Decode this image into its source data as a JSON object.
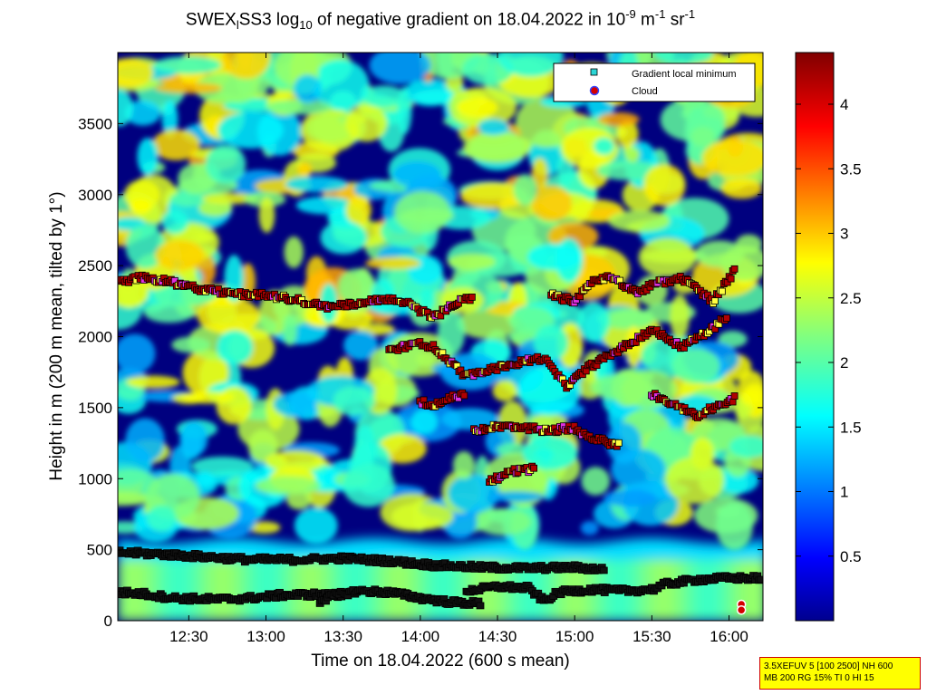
{
  "title": {
    "prefix": "SWEX",
    "sub1": "l",
    "mid": "SS3 log",
    "sub2": "10",
    "rest": " of negative gradient on 18.04.2022 in 10",
    "sup1": "-9",
    "unit1": " m",
    "sup2": "-1",
    "unit2": " sr",
    "sup3": "-1"
  },
  "info_box": {
    "line1": "3.5XEFUV 5 [100 2500] NH 600",
    "line2": "MB 200 RG 15% TI 0 HI 15"
  },
  "chart_data": {
    "type": "heatmap",
    "xlabel": "Time on 18.04.2022 (600 s mean)",
    "ylabel": "Height in m (200 m mean, tilted by 1°)",
    "x_ticks": [
      "12:30",
      "13:00",
      "13:30",
      "14:00",
      "14:30",
      "15:00",
      "15:30",
      "16:00"
    ],
    "x_tick_hours": [
      12.5,
      13.0,
      13.5,
      14.0,
      14.5,
      15.0,
      15.5,
      16.0
    ],
    "xlim_hours": [
      12.04,
      16.22
    ],
    "y_ticks": [
      0,
      500,
      1000,
      1500,
      2000,
      2500,
      3000,
      3500
    ],
    "ylim": [
      0,
      4000
    ],
    "colorbar": {
      "ticks": [
        "0.5",
        "1",
        "1.5",
        "2",
        "2.5",
        "3",
        "3.5",
        "4"
      ],
      "tick_values": [
        0.5,
        1,
        1.5,
        2,
        2.5,
        3,
        3.5,
        4
      ],
      "range": [
        0,
        4.4
      ],
      "colormap": "jet"
    },
    "legend": {
      "position": "top-right",
      "entries": [
        {
          "label": "Gradient local minimum",
          "marker": "square",
          "color": "#2bd6d6"
        },
        {
          "label": "Cloud",
          "marker": "circle",
          "color": "#d40000",
          "edge": "#3344ff"
        }
      ]
    },
    "layers": [
      {
        "name": "boundary-layer-top",
        "points": [
          [
            12.04,
            480
          ],
          [
            12.3,
            470
          ],
          [
            12.6,
            450
          ],
          [
            12.9,
            430
          ],
          [
            13.2,
            430
          ],
          [
            13.5,
            440
          ],
          [
            13.8,
            420
          ],
          [
            14.1,
            390
          ],
          [
            14.4,
            375
          ],
          [
            14.7,
            370
          ],
          [
            15.0,
            375
          ],
          [
            15.2,
            360
          ]
        ]
      },
      {
        "name": "lower-layer",
        "points": [
          [
            12.04,
            200
          ],
          [
            12.2,
            190
          ],
          [
            12.4,
            160
          ],
          [
            12.7,
            150
          ],
          [
            12.9,
            160
          ],
          [
            13.1,
            180
          ],
          [
            13.3,
            185
          ],
          [
            13.5,
            175
          ]
        ]
      },
      {
        "name": "lower-layer-b",
        "points": [
          [
            13.35,
            140
          ],
          [
            13.45,
            180
          ],
          [
            13.6,
            210
          ],
          [
            13.8,
            200
          ],
          [
            14.0,
            160
          ],
          [
            14.2,
            130
          ],
          [
            14.4,
            120
          ]
        ]
      },
      {
        "name": "lower-layer-c",
        "points": [
          [
            14.3,
            210
          ],
          [
            14.5,
            240
          ],
          [
            14.7,
            230
          ],
          [
            14.8,
            140
          ],
          [
            14.9,
            200
          ],
          [
            15.1,
            220
          ],
          [
            15.3,
            210
          ],
          [
            15.5,
            220
          ],
          [
            15.6,
            260
          ],
          [
            15.8,
            290
          ],
          [
            16.0,
            300
          ],
          [
            16.22,
            300
          ]
        ]
      },
      {
        "name": "cloud-layer-2300",
        "points": [
          [
            12.04,
            2380
          ],
          [
            12.2,
            2420
          ],
          [
            12.4,
            2380
          ],
          [
            12.6,
            2330
          ],
          [
            12.8,
            2300
          ],
          [
            13.0,
            2290
          ],
          [
            13.2,
            2260
          ],
          [
            13.4,
            2210
          ],
          [
            13.6,
            2230
          ],
          [
            13.8,
            2270
          ],
          [
            13.9,
            2250
          ],
          [
            14.0,
            2180
          ],
          [
            14.1,
            2140
          ],
          [
            14.25,
            2250
          ],
          [
            14.35,
            2280
          ]
        ]
      },
      {
        "name": "cloud-layer-1900",
        "points": [
          [
            13.8,
            1900
          ],
          [
            14.0,
            1960
          ],
          [
            14.1,
            1920
          ],
          [
            14.3,
            1720
          ],
          [
            14.5,
            1780
          ],
          [
            14.7,
            1830
          ],
          [
            14.8,
            1850
          ],
          [
            14.95,
            1650
          ],
          [
            15.1,
            1790
          ],
          [
            15.25,
            1880
          ],
          [
            15.4,
            1980
          ],
          [
            15.5,
            2050
          ],
          [
            15.7,
            1930
          ],
          [
            15.9,
            2060
          ],
          [
            16.0,
            2160
          ]
        ]
      },
      {
        "name": "cloud-layer-1550",
        "points": [
          [
            14.0,
            1540
          ],
          [
            14.1,
            1520
          ],
          [
            14.2,
            1570
          ],
          [
            14.3,
            1600
          ]
        ]
      },
      {
        "name": "cloud-layer-2250b",
        "points": [
          [
            14.85,
            2290
          ],
          [
            15.0,
            2250
          ],
          [
            15.1,
            2380
          ],
          [
            15.25,
            2420
          ],
          [
            15.4,
            2310
          ],
          [
            15.55,
            2380
          ],
          [
            15.7,
            2410
          ],
          [
            15.9,
            2250
          ],
          [
            16.05,
            2480
          ]
        ]
      },
      {
        "name": "cloud-layer-1300",
        "points": [
          [
            14.35,
            1340
          ],
          [
            14.5,
            1370
          ],
          [
            14.85,
            1340
          ],
          [
            15.0,
            1360
          ],
          [
            15.1,
            1290
          ],
          [
            15.3,
            1230
          ]
        ]
      },
      {
        "name": "cloud-layer-1050",
        "points": [
          [
            14.45,
            980
          ],
          [
            14.6,
            1050
          ],
          [
            14.75,
            1070
          ]
        ]
      },
      {
        "name": "cloud-layer-1500",
        "points": [
          [
            15.5,
            1600
          ],
          [
            15.8,
            1440
          ],
          [
            15.9,
            1500
          ],
          [
            16.05,
            1570
          ]
        ]
      }
    ]
  }
}
